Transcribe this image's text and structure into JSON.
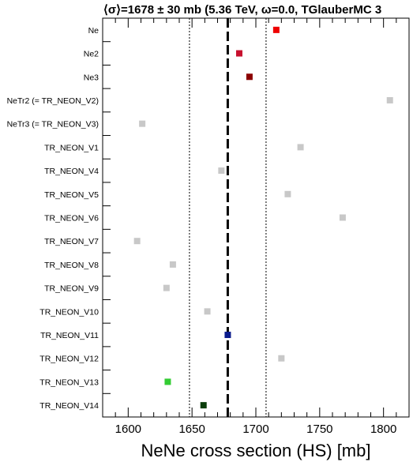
{
  "chart_data": {
    "type": "scatter",
    "title": "⟨σ⟩=1678 ± 30 mb (5.36 TeV, ω=0.0, TGlauberMC 3",
    "xlabel": "NeNe cross section (HS) [mb]",
    "xlim": [
      1580,
      1820
    ],
    "xticks": [
      1600,
      1650,
      1700,
      1750,
      1800
    ],
    "mean": 1678,
    "band": [
      1648,
      1708
    ],
    "grid": false,
    "categories": [
      "Ne",
      "Ne2",
      "Ne3",
      "NeTr2 (= TR_NEON_V2)",
      "NeTr3 (= TR_NEON_V3)",
      "TR_NEON_V1",
      "TR_NEON_V4",
      "TR_NEON_V5",
      "TR_NEON_V6",
      "TR_NEON_V7",
      "TR_NEON_V8",
      "TR_NEON_V9",
      "TR_NEON_V10",
      "TR_NEON_V11",
      "TR_NEON_V12",
      "TR_NEON_V13",
      "TR_NEON_V14"
    ],
    "values": [
      1716,
      1687,
      1695,
      1805,
      1611,
      1735,
      1673,
      1725,
      1768,
      1607,
      1635,
      1630,
      1662,
      1678,
      1720,
      1631,
      1659
    ],
    "colors": [
      "#ee0000",
      "#c8102e",
      "#8b0000",
      "#c8c8c8",
      "#c8c8c8",
      "#c8c8c8",
      "#c8c8c8",
      "#c8c8c8",
      "#c8c8c8",
      "#c8c8c8",
      "#c8c8c8",
      "#c8c8c8",
      "#c8c8c8",
      "#0a1a8c",
      "#c8c8c8",
      "#33cc33",
      "#0a3d0a"
    ]
  }
}
